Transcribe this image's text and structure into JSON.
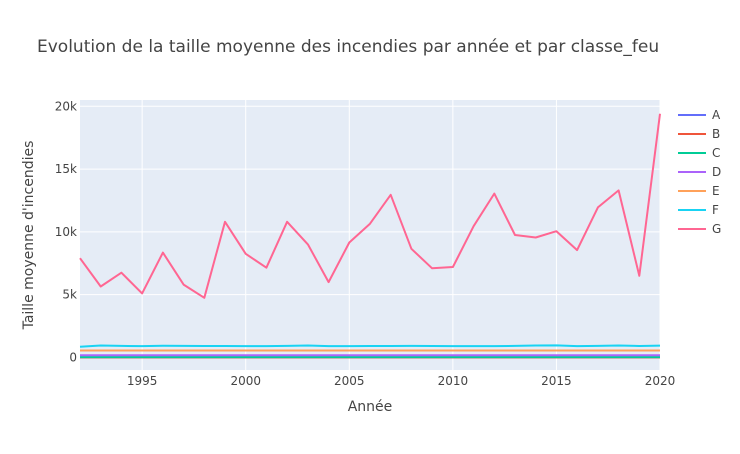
{
  "chart_data": {
    "type": "line",
    "title": "Evolution de la taille moyenne des incendies par année et par classe_feu",
    "xlabel": "Année",
    "ylabel": "Taille moyenne d'incendies",
    "x": [
      1992,
      1993,
      1994,
      1995,
      1996,
      1997,
      1998,
      1999,
      2000,
      2001,
      2002,
      2003,
      2004,
      2005,
      2006,
      2007,
      2008,
      2009,
      2010,
      2011,
      2012,
      2013,
      2014,
      2015,
      2016,
      2017,
      2018,
      2019,
      2020
    ],
    "xlim": [
      1992,
      2020
    ],
    "ylim": [
      -1000,
      20500
    ],
    "x_ticks": [
      1995,
      2000,
      2005,
      2010,
      2015,
      2020
    ],
    "x_tick_labels": [
      "1995",
      "2000",
      "2005",
      "2010",
      "2015",
      "2020"
    ],
    "y_ticks": [
      0,
      5000,
      10000,
      15000,
      20000
    ],
    "y_tick_labels": [
      "0",
      "5k",
      "10k",
      "15k",
      "20k"
    ],
    "grid": true,
    "legend_position": "right",
    "series": [
      {
        "name": "A",
        "color": "#636efa",
        "values": [
          0.1,
          0.1,
          0.1,
          0.1,
          0.1,
          0.1,
          0.1,
          0.1,
          0.1,
          0.1,
          0.1,
          0.1,
          0.1,
          0.1,
          0.1,
          0.1,
          0.1,
          0.1,
          0.1,
          0.1,
          0.1,
          0.1,
          0.1,
          0.1,
          0.1,
          0.1,
          0.1,
          0.1,
          0.1
        ]
      },
      {
        "name": "B",
        "color": "#ef553b",
        "values": [
          2,
          2,
          2,
          2,
          2,
          2,
          2,
          2,
          2,
          2,
          2,
          2,
          2,
          2,
          2,
          2,
          2,
          2,
          2,
          2,
          2,
          2,
          2,
          2,
          2,
          2,
          2,
          2,
          2
        ]
      },
      {
        "name": "C",
        "color": "#00cc96",
        "values": [
          30,
          30,
          30,
          30,
          30,
          30,
          30,
          30,
          30,
          30,
          30,
          30,
          30,
          30,
          30,
          30,
          30,
          30,
          30,
          30,
          30,
          30,
          30,
          30,
          30,
          30,
          30,
          30,
          30
        ]
      },
      {
        "name": "D",
        "color": "#ab63fa",
        "values": [
          170,
          170,
          170,
          170,
          170,
          170,
          170,
          170,
          170,
          170,
          170,
          170,
          170,
          170,
          170,
          170,
          170,
          170,
          170,
          170,
          170,
          170,
          170,
          170,
          170,
          170,
          170,
          170,
          170
        ]
      },
      {
        "name": "E",
        "color": "#ffa15a",
        "values": [
          550,
          550,
          550,
          550,
          550,
          550,
          550,
          550,
          550,
          550,
          550,
          550,
          550,
          550,
          550,
          550,
          550,
          550,
          550,
          550,
          550,
          550,
          550,
          550,
          550,
          550,
          550,
          550,
          550
        ]
      },
      {
        "name": "F",
        "color": "#19d3f3",
        "values": [
          850,
          950,
          920,
          900,
          930,
          920,
          910,
          910,
          900,
          900,
          920,
          950,
          900,
          900,
          910,
          910,
          920,
          910,
          900,
          900,
          900,
          920,
          950,
          960,
          900,
          920,
          950,
          910,
          940
        ]
      },
      {
        "name": "G",
        "color": "#ff6692",
        "values": [
          7900,
          5650,
          6750,
          5100,
          8350,
          5800,
          4750,
          10800,
          8250,
          7150,
          10800,
          9000,
          6000,
          9150,
          10650,
          12950,
          8650,
          7100,
          7200,
          10450,
          13050,
          9750,
          9550,
          10050,
          8550,
          11950,
          13300,
          6500,
          19400
        ]
      }
    ]
  }
}
